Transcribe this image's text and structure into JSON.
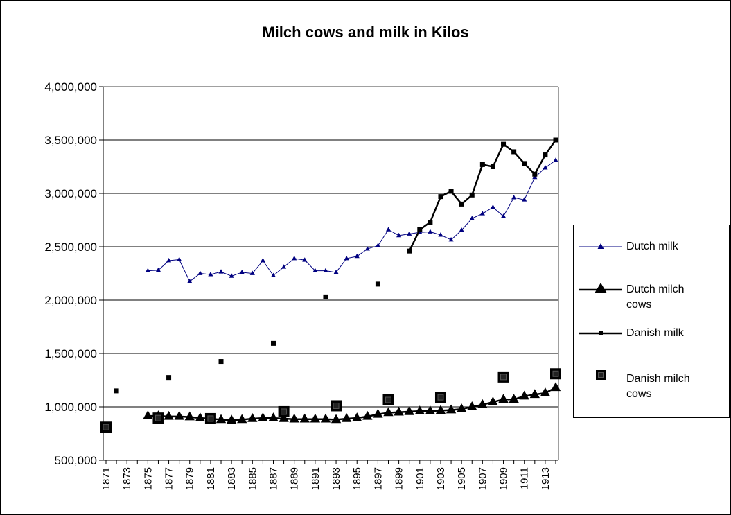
{
  "chart_data": {
    "type": "line",
    "title": "Milch cows and milk in Kilos",
    "xlabel": "",
    "ylabel": "",
    "ylim": [
      500000,
      4000000
    ],
    "yticks": [
      "500,000",
      "1,000,000",
      "1,500,000",
      "2,000,000",
      "2,500,000",
      "3,000,000",
      "3,500,000",
      "4,000,000"
    ],
    "xlim": [
      1871,
      1914
    ],
    "xticks": [
      "1871",
      "1873",
      "1875",
      "1877",
      "1879",
      "1881",
      "1883",
      "1885",
      "1887",
      "1889",
      "1891",
      "1893",
      "1895",
      "1897",
      "1899",
      "1901",
      "1903",
      "1905",
      "1907",
      "1909",
      "1911",
      "1913"
    ],
    "grid": "horizontal",
    "legend_position": "right",
    "series": [
      {
        "name": "Dutch milk",
        "color": "#000080",
        "marker": "small-triangle",
        "line": "thin",
        "x": [
          1875,
          1876,
          1877,
          1878,
          1879,
          1880,
          1881,
          1882,
          1883,
          1884,
          1885,
          1886,
          1887,
          1888,
          1889,
          1890,
          1891,
          1892,
          1893,
          1894,
          1895,
          1896,
          1897,
          1898,
          1899,
          1900,
          1901,
          1902,
          1903,
          1904,
          1905,
          1906,
          1907,
          1908,
          1909,
          1910,
          1911,
          1912,
          1913,
          1914
        ],
        "values": [
          2275000,
          2280000,
          2370000,
          2380000,
          2175000,
          2250000,
          2240000,
          2265000,
          2225000,
          2260000,
          2250000,
          2370000,
          2230000,
          2310000,
          2390000,
          2375000,
          2275000,
          2275000,
          2260000,
          2390000,
          2410000,
          2480000,
          2510000,
          2660000,
          2605000,
          2620000,
          2635000,
          2640000,
          2610000,
          2565000,
          2655000,
          2765000,
          2810000,
          2870000,
          2785000,
          2960000,
          2940000,
          3150000,
          3240000,
          3310000
        ]
      },
      {
        "name": "Dutch milch cows",
        "color": "#000000",
        "marker": "large-triangle",
        "line": "thick",
        "x": [
          1875,
          1876,
          1877,
          1878,
          1879,
          1880,
          1881,
          1882,
          1883,
          1884,
          1885,
          1886,
          1887,
          1888,
          1889,
          1890,
          1891,
          1892,
          1893,
          1894,
          1895,
          1896,
          1897,
          1898,
          1899,
          1900,
          1901,
          1902,
          1903,
          1904,
          1905,
          1906,
          1907,
          1908,
          1909,
          1910,
          1911,
          1912,
          1913,
          1914
        ],
        "values": [
          915000,
          915000,
          910000,
          910000,
          905000,
          895000,
          890000,
          880000,
          875000,
          880000,
          890000,
          895000,
          895000,
          890000,
          885000,
          885000,
          885000,
          885000,
          880000,
          890000,
          895000,
          910000,
          930000,
          945000,
          950000,
          955000,
          960000,
          960000,
          965000,
          970000,
          980000,
          1000000,
          1020000,
          1045000,
          1070000,
          1070000,
          1100000,
          1115000,
          1130000,
          1180000
        ]
      },
      {
        "name": "Danish milk",
        "color": "#000000",
        "marker": "small-square",
        "line": "thick",
        "points": [
          [
            1872,
            1150000
          ],
          [
            1877,
            1275000
          ],
          [
            1882,
            1425000
          ],
          [
            1887,
            1595000
          ],
          [
            1892,
            2030000
          ],
          [
            1897,
            2150000
          ],
          [
            1900,
            2460000
          ],
          [
            1901,
            2660000
          ],
          [
            1902,
            2730000
          ],
          [
            1903,
            2970000
          ],
          [
            1904,
            3020000
          ],
          [
            1905,
            2900000
          ],
          [
            1906,
            2985000
          ],
          [
            1907,
            3270000
          ],
          [
            1908,
            3250000
          ],
          [
            1909,
            3460000
          ],
          [
            1910,
            3390000
          ],
          [
            1911,
            3280000
          ],
          [
            1912,
            3180000
          ],
          [
            1913,
            3360000
          ],
          [
            1914,
            3500000
          ]
        ],
        "line_from": 1900
      },
      {
        "name": "Danish milch cows",
        "color": "#000000",
        "marker": "large-square",
        "line": "none",
        "points": [
          [
            1871,
            810000
          ],
          [
            1876,
            895000
          ],
          [
            1881,
            890000
          ],
          [
            1888,
            955000
          ],
          [
            1893,
            1010000
          ],
          [
            1898,
            1065000
          ],
          [
            1903,
            1090000
          ],
          [
            1909,
            1280000
          ],
          [
            1914,
            1310000
          ]
        ]
      }
    ]
  },
  "legend": {
    "dutch_milk": "Dutch milk",
    "dutch_cows_line1": "Dutch milch",
    "dutch_cows_line2": "cows",
    "danish_milk": "Danish milk",
    "danish_cows_line1": "Danish milch",
    "danish_cows_line2": "cows"
  }
}
